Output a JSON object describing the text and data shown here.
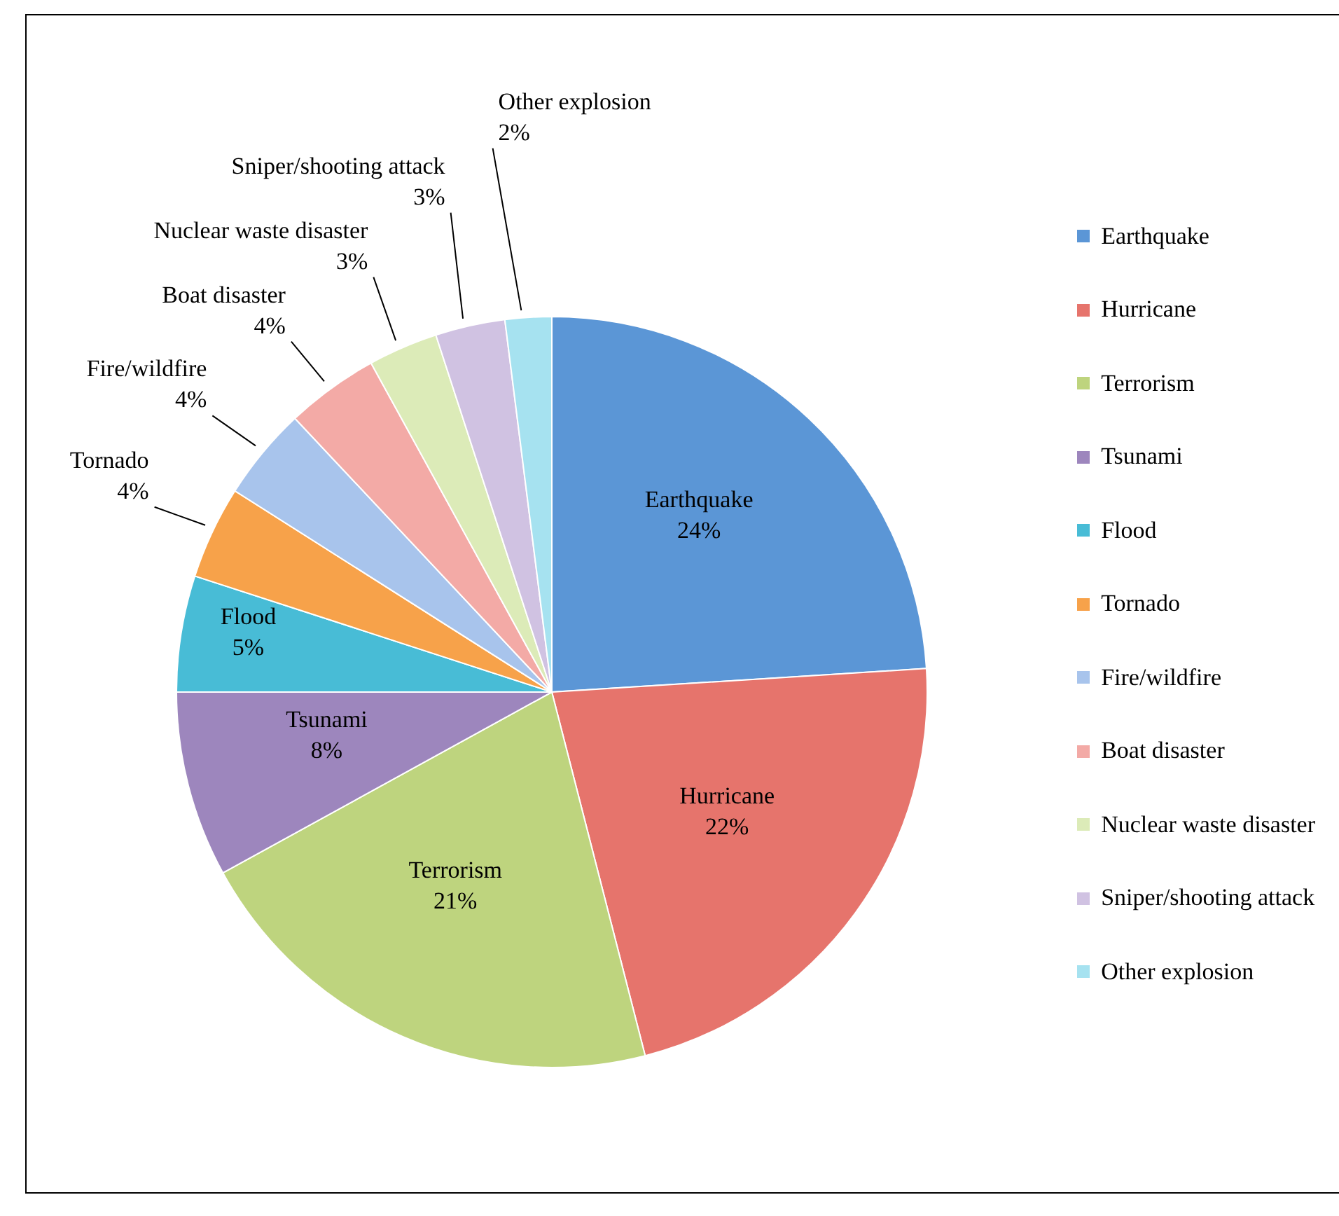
{
  "chart_data": {
    "type": "pie",
    "categories": [
      "Earthquake",
      "Hurricane",
      "Terrorism",
      "Tsunami",
      "Flood",
      "Tornado",
      "Fire/wildfire",
      "Boat disaster",
      "Nuclear waste disaster",
      "Sniper/shooting attack",
      "Other explosion"
    ],
    "values": [
      24,
      22,
      21,
      8,
      5,
      4,
      4,
      4,
      3,
      3,
      2
    ],
    "value_labels": [
      "24%",
      "22%",
      "21%",
      "8%",
      "5%",
      "4%",
      "4%",
      "4%",
      "3%",
      "3%",
      "2%"
    ],
    "colors": [
      "#5b96d6",
      "#e6746c",
      "#bed47e",
      "#9d86bd",
      "#48bcd6",
      "#f7a24a",
      "#a8c4ec",
      "#f3aaa6",
      "#dcebb8",
      "#d0c2e2",
      "#a6e2f0"
    ],
    "legend": "right"
  }
}
